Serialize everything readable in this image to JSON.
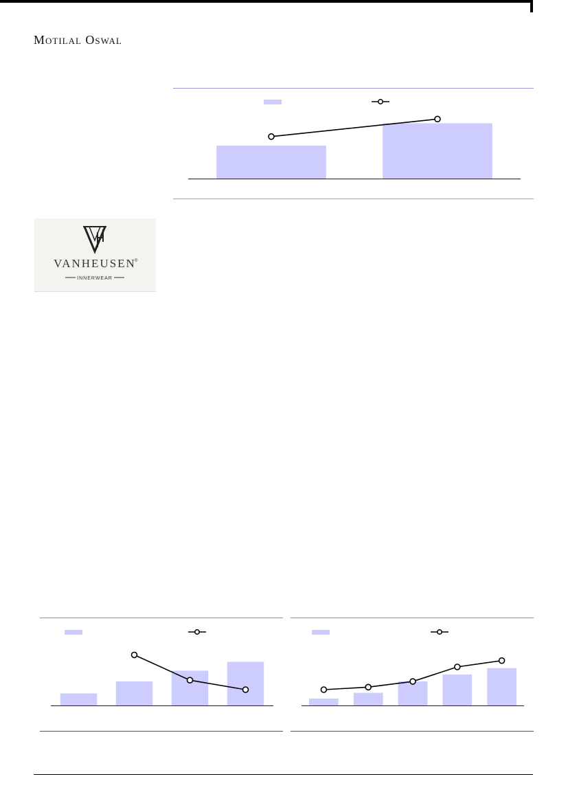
{
  "header": {
    "brand": "Motilal Oswal"
  },
  "logo": {
    "brand_text": "VanHeusen",
    "sub_text": "INNERWEAR",
    "registered": "®"
  },
  "colors": {
    "bar": "#ccccff",
    "line": "#000000",
    "rule": "#9a9ad6"
  },
  "chart_data": [
    {
      "type": "bar",
      "title": "",
      "categories": [
        "",
        ""
      ],
      "series": [
        {
          "values": [
            47,
            79
          ]
        },
        {
          "values": [
            60,
            85
          ]
        }
      ],
      "ylim": [
        0,
        100
      ],
      "legend": "top-center"
    },
    {
      "type": "bar",
      "title": "",
      "categories": [
        "",
        "",
        "",
        ""
      ],
      "series": [
        {
          "values": [
            19,
            38,
            55,
            69
          ]
        },
        {
          "values": [
            null,
            80,
            40,
            25
          ]
        }
      ],
      "ylim": [
        0,
        100
      ],
      "legend": "top-left"
    },
    {
      "type": "bar",
      "title": "",
      "categories": [
        "",
        "",
        "",
        "",
        ""
      ],
      "series": [
        {
          "values": [
            11,
            20,
            38,
            49,
            59
          ]
        },
        {
          "values": [
            25,
            29,
            38,
            61,
            71
          ]
        }
      ],
      "ylim": [
        0,
        100
      ],
      "legend": "top-left"
    }
  ]
}
